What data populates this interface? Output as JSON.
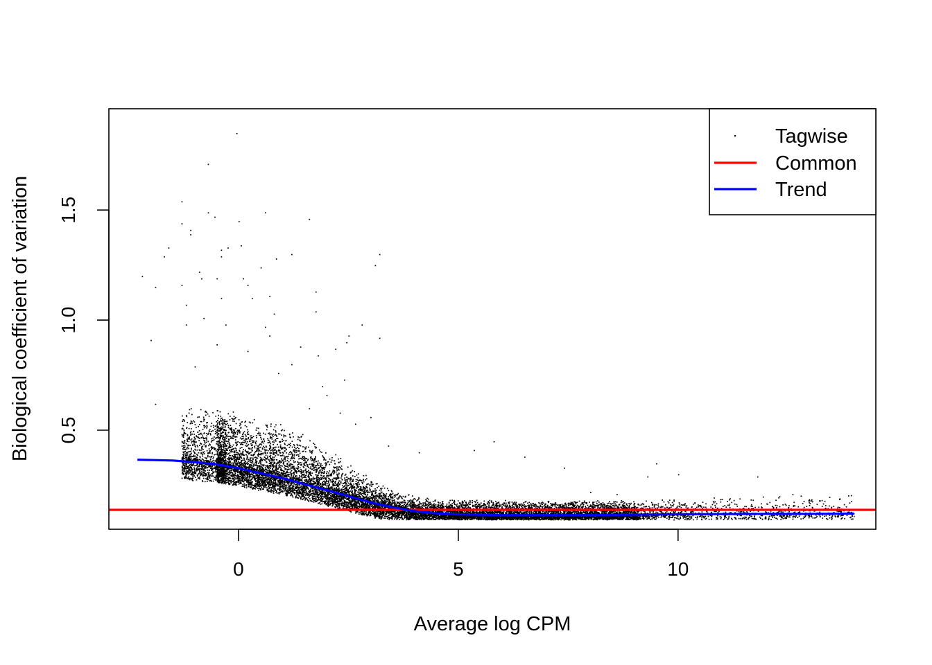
{
  "chart_data": {
    "type": "scatter",
    "title": "",
    "xlabel": "Average log CPM",
    "ylabel": "Biological coefficient of variation",
    "xlim": [
      -2.95,
      14.5
    ],
    "ylim": [
      0.05,
      1.96
    ],
    "x_ticks": [
      0,
      5,
      10
    ],
    "x_tick_labels": [
      "0",
      "5",
      "10"
    ],
    "y_ticks": [
      0.5,
      1.0,
      1.5
    ],
    "y_tick_labels": [
      "0.5",
      "1.0",
      "1.5"
    ],
    "grid": false,
    "legend_position": "top-right",
    "legend": [
      {
        "label": "Tagwise",
        "kind": "point",
        "color": "#000000"
      },
      {
        "label": "Common",
        "kind": "line",
        "color": "#ff0000"
      },
      {
        "label": "Trend",
        "kind": "line",
        "color": "#0000ff"
      }
    ],
    "series": [
      {
        "name": "Tagwise",
        "kind": "points",
        "color": "#000000",
        "x_range": [
          -2.2,
          14.0
        ],
        "approx_count": 14000,
        "density_note": "dense cloud along trend, sparse outliers above",
        "outliers": [
          [
            -0.05,
            1.85
          ],
          [
            -0.7,
            1.71
          ],
          [
            -1.3,
            1.54
          ],
          [
            -0.7,
            1.49
          ],
          [
            0.6,
            1.49
          ],
          [
            -0.55,
            1.47
          ],
          [
            1.6,
            1.46
          ],
          [
            -1.3,
            1.44
          ],
          [
            0.0,
            1.45
          ],
          [
            -1.1,
            1.41
          ],
          [
            -1.1,
            1.39
          ],
          [
            -1.6,
            1.33
          ],
          [
            -1.7,
            1.29
          ],
          [
            -0.4,
            1.32
          ],
          [
            0.05,
            1.34
          ],
          [
            -0.25,
            1.33
          ],
          [
            -0.4,
            1.29
          ],
          [
            1.2,
            1.3
          ],
          [
            0.85,
            1.28
          ],
          [
            3.2,
            1.3
          ],
          [
            3.1,
            1.25
          ],
          [
            0.5,
            1.24
          ],
          [
            -0.9,
            1.22
          ],
          [
            -2.2,
            1.2
          ],
          [
            -0.85,
            1.19
          ],
          [
            -0.5,
            1.19
          ],
          [
            0.1,
            1.19
          ],
          [
            -1.3,
            1.16
          ],
          [
            -1.9,
            1.15
          ],
          [
            0.2,
            1.16
          ],
          [
            1.75,
            1.13
          ],
          [
            -0.4,
            1.1
          ],
          [
            0.7,
            1.11
          ],
          [
            -1.2,
            1.07
          ],
          [
            0.3,
            1.1
          ],
          [
            1.75,
            1.04
          ],
          [
            0.8,
            1.03
          ],
          [
            -0.8,
            1.01
          ],
          [
            -1.2,
            0.98
          ],
          [
            -0.3,
            0.98
          ],
          [
            2.8,
            0.98
          ],
          [
            0.6,
            0.97
          ],
          [
            0.7,
            0.93
          ],
          [
            2.5,
            0.93
          ],
          [
            3.2,
            0.92
          ],
          [
            -2.0,
            0.91
          ],
          [
            -0.5,
            0.89
          ],
          [
            2.45,
            0.9
          ],
          [
            1.4,
            0.88
          ],
          [
            0.2,
            0.86
          ],
          [
            2.2,
            0.87
          ],
          [
            1.8,
            0.84
          ],
          [
            1.2,
            0.8
          ],
          [
            -1.0,
            0.79
          ],
          [
            0.9,
            0.76
          ],
          [
            2.4,
            0.73
          ],
          [
            1.9,
            0.7
          ],
          [
            2.0,
            0.66
          ],
          [
            1.6,
            0.6
          ],
          [
            2.3,
            0.58
          ],
          [
            -1.9,
            0.62
          ],
          [
            3.0,
            0.56
          ],
          [
            2.65,
            0.53
          ],
          [
            3.4,
            0.43
          ],
          [
            5.8,
            0.45
          ],
          [
            5.35,
            0.41
          ],
          [
            4.1,
            0.4
          ],
          [
            6.5,
            0.38
          ],
          [
            7.4,
            0.33
          ],
          [
            9.5,
            0.35
          ],
          [
            10.0,
            0.3
          ],
          [
            11.8,
            0.29
          ],
          [
            12.3,
            0.2
          ],
          [
            12.6,
            0.21
          ],
          [
            9.3,
            0.29
          ],
          [
            8.0,
            0.22
          ],
          [
            8.6,
            0.21
          ]
        ]
      },
      {
        "name": "Common",
        "kind": "hline",
        "color": "#ff0000",
        "y": 0.138
      },
      {
        "name": "Trend",
        "kind": "line",
        "color": "#0000ff",
        "x": [
          -2.3,
          -1.5,
          -1.0,
          -0.5,
          0.0,
          0.5,
          1.0,
          1.5,
          2.0,
          2.5,
          3.0,
          3.5,
          4.0,
          4.5,
          5.0,
          6.0,
          7.0,
          8.0,
          9.0,
          10.0,
          11.0,
          12.0,
          13.0,
          14.0
        ],
        "y": [
          0.366,
          0.362,
          0.355,
          0.345,
          0.327,
          0.305,
          0.282,
          0.255,
          0.228,
          0.2,
          0.172,
          0.15,
          0.132,
          0.122,
          0.117,
          0.114,
          0.114,
          0.114,
          0.116,
          0.118,
          0.119,
          0.12,
          0.12,
          0.121
        ]
      }
    ]
  }
}
